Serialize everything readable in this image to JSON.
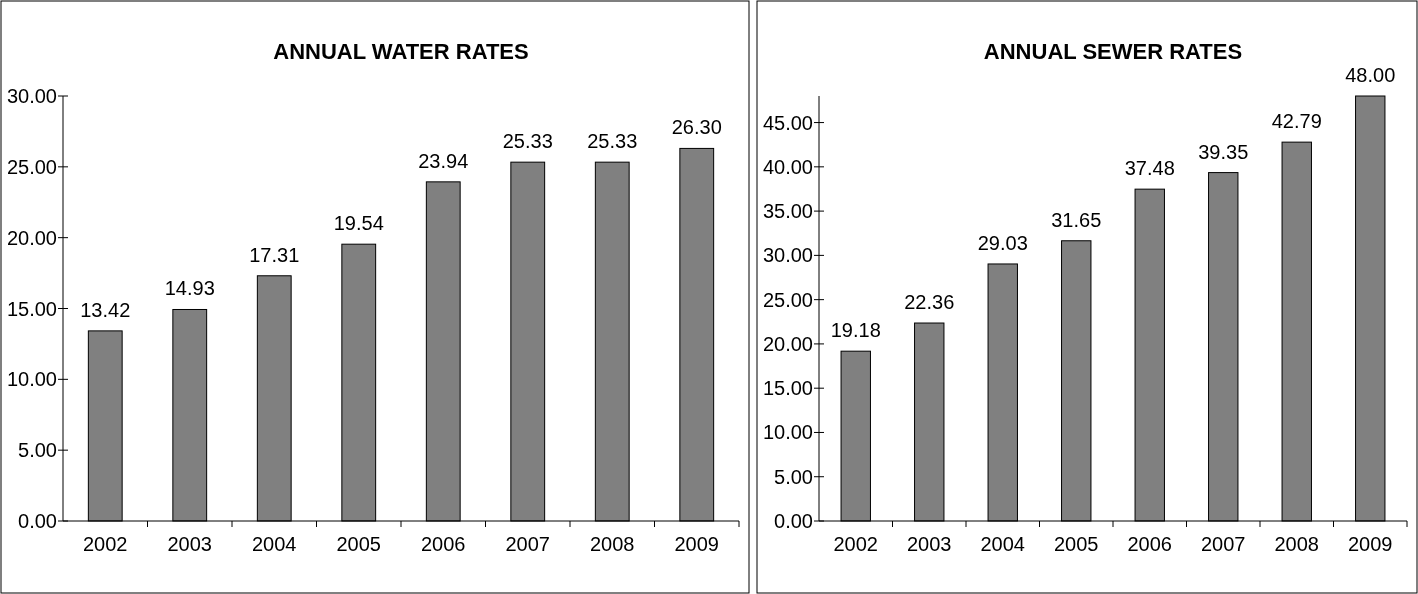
{
  "chart_data": [
    {
      "type": "bar",
      "title": "ANNUAL WATER RATES",
      "categories": [
        "2002",
        "2003",
        "2004",
        "2005",
        "2006",
        "2007",
        "2008",
        "2009"
      ],
      "values": [
        13.42,
        14.93,
        17.31,
        19.54,
        23.94,
        25.33,
        25.33,
        26.3
      ],
      "value_labels": [
        "13.42",
        "14.93",
        "17.31",
        "19.54",
        "23.94",
        "25.33",
        "25.33",
        "26.30"
      ],
      "color": "#808080",
      "ylim": [
        0,
        30
      ],
      "yticks": [
        {
          "value": 0,
          "label": "0.00"
        },
        {
          "value": 5,
          "label": "5.00"
        },
        {
          "value": 10,
          "label": "10.00"
        },
        {
          "value": 15,
          "label": "15.00"
        },
        {
          "value": 20,
          "label": "20.00"
        },
        {
          "value": 25,
          "label": "25.00"
        },
        {
          "value": 30,
          "label": "30.00"
        }
      ],
      "grid": false
    },
    {
      "type": "bar",
      "title": "ANNUAL SEWER RATES",
      "categories": [
        "2002",
        "2003",
        "2004",
        "2005",
        "2006",
        "2007",
        "2008",
        "2009"
      ],
      "values": [
        19.18,
        22.36,
        29.03,
        31.65,
        37.48,
        39.35,
        42.79,
        48
      ],
      "value_labels": [
        "19.18",
        "22.36",
        "29.03",
        "31.65",
        "37.48",
        "39.35",
        "42.79",
        "48.00"
      ],
      "color": "#808080",
      "ylim": [
        0,
        48
      ],
      "yticks": [
        {
          "value": 0,
          "label": "0.00"
        },
        {
          "value": 5,
          "label": "5.00"
        },
        {
          "value": 10,
          "label": "10.00"
        },
        {
          "value": 15,
          "label": "15.00"
        },
        {
          "value": 20,
          "label": "20.00"
        },
        {
          "value": 25,
          "label": "25.00"
        },
        {
          "value": 30,
          "label": "30.00"
        },
        {
          "value": 35,
          "label": "35.00"
        },
        {
          "value": 40,
          "label": "40.00"
        },
        {
          "value": 45,
          "label": "45.00"
        }
      ],
      "grid": false
    }
  ]
}
